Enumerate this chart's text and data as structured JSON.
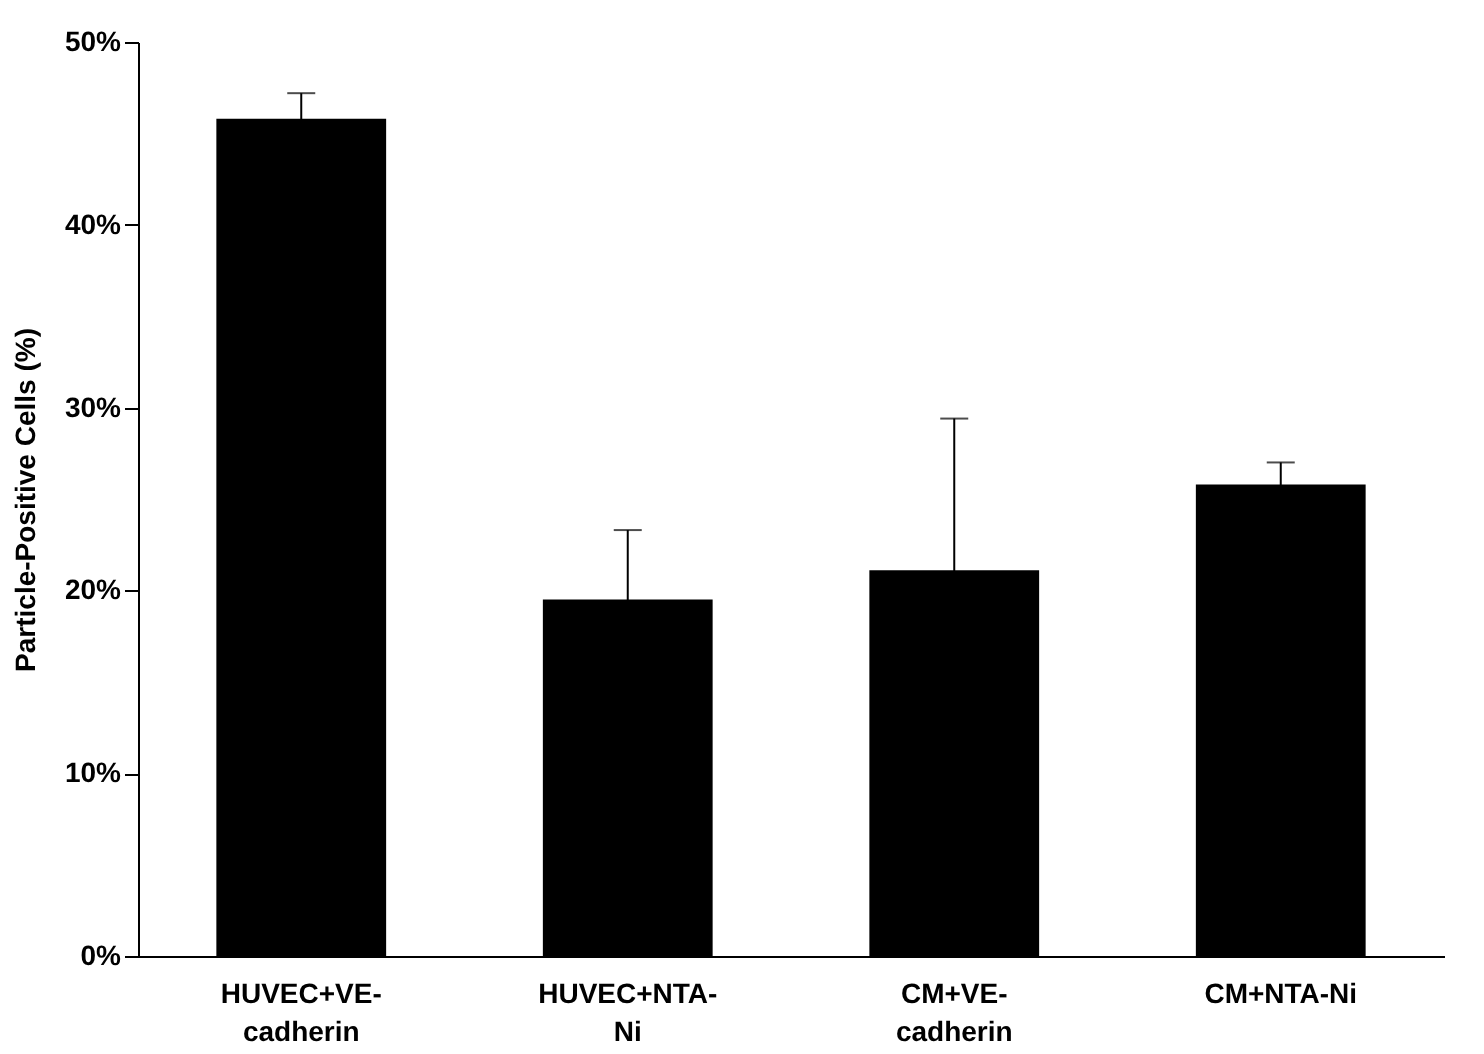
{
  "chart_data": {
    "type": "bar",
    "ylabel": "Particle-Positive Cells (%)",
    "categories": [
      "HUVEC+VE-cadherin",
      "HUVEC+NTA-Ni",
      "CM+VE-cadherin",
      "CM+NTA-Ni"
    ],
    "values": [
      45.8,
      19.5,
      21.1,
      25.8
    ],
    "errors": [
      1.4,
      3.8,
      8.3,
      1.2
    ],
    "color": "#000000",
    "ylim": [
      0,
      50
    ],
    "yticks": [
      {
        "value": 0,
        "label": "0%"
      },
      {
        "value": 10,
        "label": "10%"
      },
      {
        "value": 20,
        "label": "20%"
      },
      {
        "value": 30,
        "label": "30%"
      },
      {
        "value": 40,
        "label": "40%"
      },
      {
        "value": 50,
        "label": "50%"
      }
    ],
    "grid": false
  }
}
